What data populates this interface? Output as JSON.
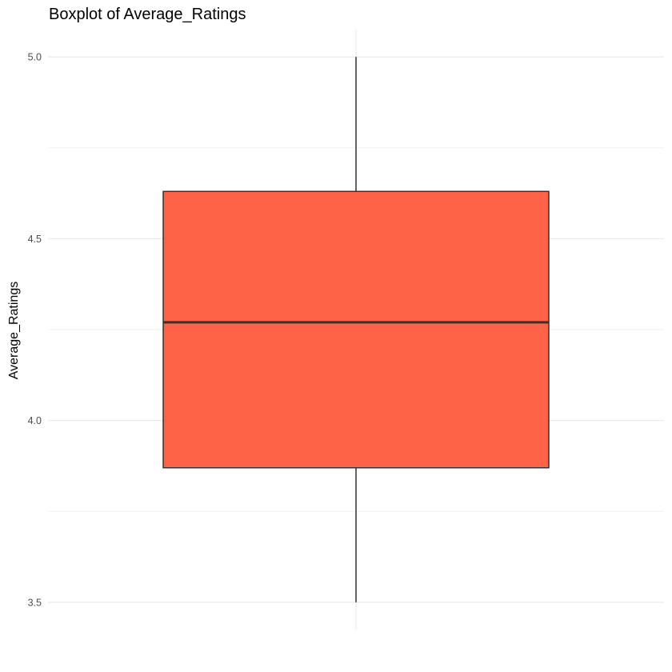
{
  "chart_data": {
    "type": "boxplot",
    "title": "Boxplot of Average_Ratings",
    "xlabel": "",
    "ylabel": "Average_Ratings",
    "ylim": [
      3.425,
      5.075
    ],
    "yticks": [
      3.5,
      4.0,
      4.5,
      5.0
    ],
    "ytick_labels": [
      "3.5",
      "4.0",
      "4.5",
      "5.0"
    ],
    "categories": [
      ""
    ],
    "boxes": [
      {
        "min": 3.5,
        "q1": 3.87,
        "median": 4.27,
        "q3": 4.63,
        "max": 5.0
      }
    ],
    "grid": true,
    "legend": "none",
    "colors": {
      "box_fill": "#FF6347",
      "box_stroke": "#333333",
      "grid_major": "#ebebeb",
      "grid_minor": "#f2f2f2",
      "tick_text": "#4d4d4d"
    }
  }
}
